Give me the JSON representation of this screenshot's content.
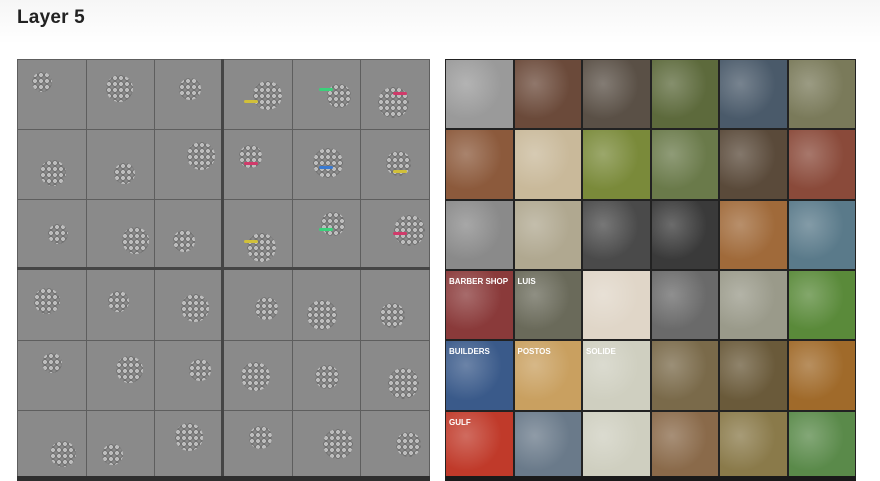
{
  "title": "Layer 5",
  "grid": {
    "rows": 6,
    "cols": 6
  },
  "right_cells": [
    {
      "bg": "#9a9a9a"
    },
    {
      "bg": "#6b4a3a"
    },
    {
      "bg": "#5a5046"
    },
    {
      "bg": "#5d6a3c"
    },
    {
      "bg": "#4a5a6a"
    },
    {
      "bg": "#7a7a5a"
    },
    {
      "bg": "#8c5a3c"
    },
    {
      "bg": "#c9b99a"
    },
    {
      "bg": "#7a8a3a"
    },
    {
      "bg": "#6a7a4a"
    },
    {
      "bg": "#5a4a3a"
    },
    {
      "bg": "#8a4a3a"
    },
    {
      "bg": "#8a8a8a"
    },
    {
      "bg": "#b0a890"
    },
    {
      "bg": "#4a4a4a"
    },
    {
      "bg": "#3a3a3a"
    },
    {
      "bg": "#a06a3a"
    },
    {
      "bg": "#5a7a8a"
    },
    {
      "bg": "#8a3a3a",
      "text": "BARBER SHOP"
    },
    {
      "bg": "#6a6a5a",
      "text": "LUIS"
    },
    {
      "bg": "#e0d6c8"
    },
    {
      "bg": "#6a6a6a"
    },
    {
      "bg": "#9a9a8a"
    },
    {
      "bg": "#5a8a3a"
    },
    {
      "bg": "#3a5a8a",
      "text": "BUILDERS"
    },
    {
      "bg": "#c9a060",
      "text": "POSTOS"
    },
    {
      "bg": "#cfcfc0",
      "text": "SOLIDE"
    },
    {
      "bg": "#7a6a4a"
    },
    {
      "bg": "#6a5a3a"
    },
    {
      "bg": "#a06a2a"
    },
    {
      "bg": "#c03a2a",
      "text": "GULF"
    },
    {
      "bg": "#6a7a8a"
    },
    {
      "bg": "#cfcfc0"
    },
    {
      "bg": "#8a6a4a"
    },
    {
      "bg": "#8a7a4a"
    },
    {
      "bg": "#5a8a4a"
    }
  ]
}
